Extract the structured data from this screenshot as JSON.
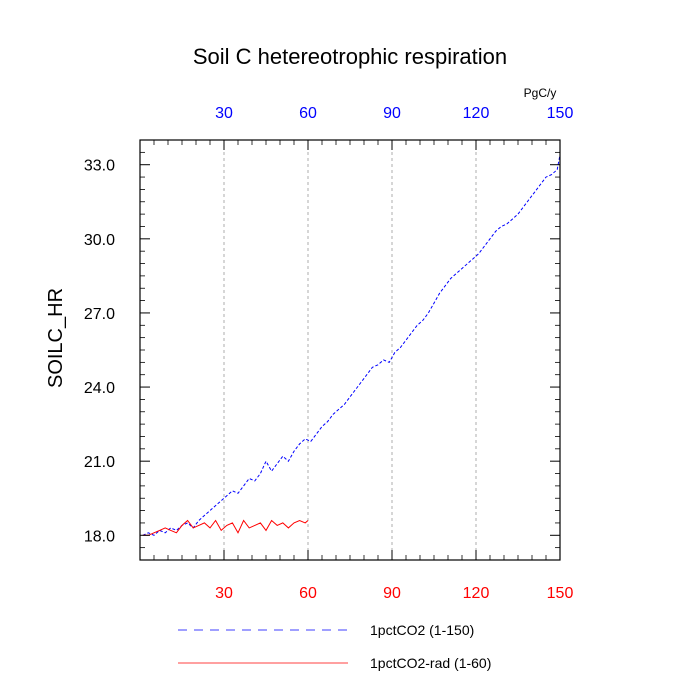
{
  "chart_data": {
    "type": "line",
    "title": "Soil C hetereotrophic respiration",
    "ylabel": "SOILC_HR",
    "top_axis_units": "PgC/y",
    "xlim": [
      0,
      150
    ],
    "ylim": [
      17.0,
      34.0
    ],
    "x_ticks": [
      "30",
      "60",
      "90",
      "120",
      "150"
    ],
    "y_ticks": [
      "18.0",
      "21.0",
      "24.0",
      "27.0",
      "30.0",
      "33.0"
    ],
    "bottom_axis_color": "#ff0000",
    "top_axis_color": "#0000ff",
    "grid": "vertical-dashed",
    "series": [
      {
        "name": "1pctCO2 (1-150)",
        "color": "#0000ff",
        "style": "dashed",
        "x": [
          1,
          3,
          5,
          7,
          9,
          11,
          13,
          15,
          17,
          19,
          21,
          23,
          25,
          27,
          29,
          31,
          33,
          35,
          37,
          39,
          41,
          43,
          45,
          47,
          49,
          51,
          53,
          55,
          57,
          59,
          61,
          63,
          65,
          67,
          69,
          71,
          73,
          75,
          77,
          79,
          81,
          83,
          85,
          87,
          89,
          91,
          93,
          95,
          97,
          99,
          101,
          103,
          105,
          107,
          109,
          111,
          113,
          115,
          117,
          119,
          121,
          123,
          125,
          127,
          129,
          131,
          133,
          135,
          137,
          139,
          141,
          143,
          145,
          147,
          149,
          150
        ],
        "y": [
          18.0,
          18.1,
          18.0,
          18.2,
          18.1,
          18.3,
          18.2,
          18.4,
          18.5,
          18.3,
          18.6,
          18.8,
          19.0,
          19.2,
          19.4,
          19.6,
          19.8,
          19.7,
          20.0,
          20.3,
          20.2,
          20.5,
          21.0,
          20.6,
          20.9,
          21.2,
          21.0,
          21.4,
          21.7,
          21.9,
          21.8,
          22.1,
          22.4,
          22.6,
          22.9,
          23.1,
          23.3,
          23.6,
          23.9,
          24.2,
          24.5,
          24.8,
          24.9,
          25.1,
          25.0,
          25.4,
          25.6,
          25.9,
          26.2,
          26.5,
          26.7,
          27.0,
          27.4,
          27.8,
          28.1,
          28.4,
          28.6,
          28.8,
          29.0,
          29.2,
          29.4,
          29.7,
          30.0,
          30.3,
          30.5,
          30.6,
          30.8,
          31.0,
          31.3,
          31.6,
          31.9,
          32.2,
          32.5,
          32.6,
          32.8,
          33.4
        ]
      },
      {
        "name": "1pctCO2-rad (1-60)",
        "color": "#ff0000",
        "style": "solid",
        "x": [
          1,
          3,
          5,
          7,
          9,
          11,
          13,
          15,
          17,
          19,
          21,
          23,
          25,
          27,
          29,
          31,
          33,
          35,
          37,
          39,
          41,
          43,
          45,
          47,
          49,
          51,
          53,
          55,
          57,
          59,
          60
        ],
        "y": [
          18.0,
          18.0,
          18.1,
          18.2,
          18.3,
          18.2,
          18.1,
          18.4,
          18.6,
          18.3,
          18.4,
          18.5,
          18.3,
          18.6,
          18.2,
          18.4,
          18.5,
          18.1,
          18.6,
          18.3,
          18.4,
          18.5,
          18.2,
          18.6,
          18.4,
          18.5,
          18.3,
          18.5,
          18.6,
          18.5,
          18.6
        ]
      }
    ]
  }
}
